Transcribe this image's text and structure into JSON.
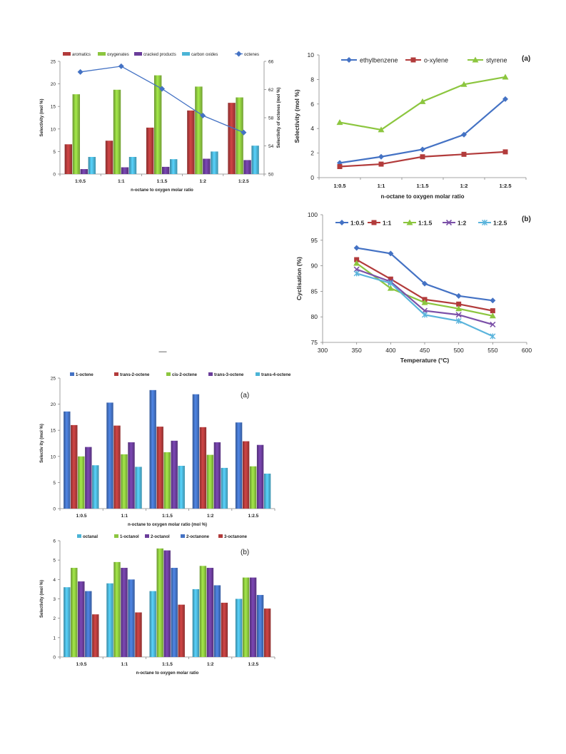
{
  "stray_mark": "—",
  "colors": {
    "red": "#b23b3b",
    "green": "#8cc63f",
    "purple": "#6a3d9a",
    "cyan": "#4bb4d6",
    "blue": "#4472c4",
    "line_blue": "#4472c4",
    "line_red": "#b23b3b",
    "line_green": "#8cc63f",
    "line_purple": "#7b50a8",
    "line_cyan": "#5ab4dc"
  },
  "chart_data": [
    {
      "id": "c1",
      "type": "bar",
      "categories": [
        "1:0.5",
        "1:1",
        "1:1.5",
        "1:2",
        "1:2.5"
      ],
      "series": [
        {
          "name": "aromatics",
          "values": [
            6.6,
            7.4,
            10.3,
            14.1,
            15.8
          ]
        },
        {
          "name": "oxygenates",
          "values": [
            17.7,
            18.7,
            21.9,
            19.4,
            17.0
          ]
        },
        {
          "name": "cracked products",
          "values": [
            1.1,
            1.5,
            1.6,
            3.4,
            3.1
          ]
        },
        {
          "name": "carbon oxides",
          "values": [
            3.8,
            3.8,
            3.3,
            5.0,
            6.3
          ]
        }
      ],
      "line_series": {
        "name": "octenes",
        "values": [
          64.5,
          65.3,
          62.1,
          58.3,
          55.9
        ]
      },
      "xlabel": "n-octane to oxygen molar ratio",
      "ylabel": "Selectivity (mol %)",
      "y2label": "Selectivity of octenes (mol %)",
      "ylim": [
        0,
        25
      ],
      "yticks": [
        "0",
        "5",
        "10",
        "15",
        "20",
        "25"
      ],
      "y2lim": [
        50,
        66
      ],
      "y2ticks": [
        "50",
        "54",
        "58",
        "62",
        "66"
      ],
      "legend": "top",
      "grid": false
    },
    {
      "id": "c2",
      "type": "line",
      "label": "(a)",
      "categories": [
        "1:0.5",
        "1:1",
        "1:1.5",
        "1:2",
        "1:2.5"
      ],
      "series": [
        {
          "name": "ethylbenzene",
          "values": [
            1.2,
            1.7,
            2.3,
            3.5,
            6.4
          ]
        },
        {
          "name": "o-xylene",
          "values": [
            0.9,
            1.1,
            1.7,
            1.9,
            2.1
          ]
        },
        {
          "name": "styrene",
          "values": [
            4.5,
            3.9,
            6.2,
            7.6,
            8.2
          ]
        }
      ],
      "xlabel": "n-octane to oxygen molar ratio",
      "ylabel": "Selectivity (mol %)",
      "ylim": [
        0,
        10
      ],
      "yticks": [
        "0",
        "2",
        "4",
        "6",
        "8",
        "10"
      ],
      "legend": "top",
      "grid": false
    },
    {
      "id": "c3",
      "type": "line",
      "label": "(b)",
      "x": [
        350,
        400,
        450,
        500,
        550
      ],
      "series": [
        {
          "name": "1:0.5",
          "values": [
            93.5,
            92.4,
            86.5,
            84.1,
            83.2
          ]
        },
        {
          "name": "1:1",
          "values": [
            91.2,
            87.4,
            83.4,
            82.5,
            81.2
          ]
        },
        {
          "name": "1:1.5",
          "values": [
            90.5,
            85.6,
            82.8,
            81.6,
            80.2
          ]
        },
        {
          "name": "1:2",
          "values": [
            89.3,
            86.9,
            81.2,
            80.4,
            78.5
          ]
        },
        {
          "name": "1:2.5",
          "values": [
            88.5,
            86.6,
            80.4,
            79.2,
            76.2
          ]
        }
      ],
      "xlabel": "Temperature (°C)",
      "ylabel": "Cyclisation (%)",
      "xlim": [
        300,
        600
      ],
      "xticks": [
        "300",
        "350",
        "400",
        "450",
        "500",
        "550",
        "600"
      ],
      "ylim": [
        75,
        100
      ],
      "yticks": [
        "75",
        "80",
        "85",
        "90",
        "95",
        "100"
      ],
      "legend": "top",
      "grid": false
    },
    {
      "id": "c4",
      "type": "bar",
      "label": "(a)",
      "categories": [
        "1:0.5",
        "1:1",
        "1:1.5",
        "1:2",
        "1:2.5"
      ],
      "series": [
        {
          "name": "1-octene",
          "values": [
            18.6,
            20.3,
            22.7,
            21.9,
            16.5
          ]
        },
        {
          "name": "trans-2-octene",
          "values": [
            16.0,
            15.9,
            15.7,
            15.6,
            12.9
          ]
        },
        {
          "name": "cis-2-octene",
          "values": [
            10.0,
            10.4,
            10.8,
            10.3,
            8.1
          ]
        },
        {
          "name": "trans-3-octene",
          "values": [
            11.8,
            12.7,
            13.0,
            12.7,
            12.2
          ]
        },
        {
          "name": "trans-4-octene",
          "values": [
            8.3,
            8.0,
            8.2,
            7.8,
            6.7
          ]
        }
      ],
      "xlabel": "n-octane to oxygen molar ratio (mol %)",
      "ylabel": "Selectiv ity (mol %)",
      "ylim": [
        0,
        25
      ],
      "yticks": [
        "0",
        "5",
        "10",
        "15",
        "20",
        "25"
      ],
      "legend": "top",
      "grid": false
    },
    {
      "id": "c5",
      "type": "bar",
      "label": "(b)",
      "categories": [
        "1:0.5",
        "1:1",
        "1:1.5",
        "1:2",
        "1:2.5"
      ],
      "series": [
        {
          "name": "octanal",
          "values": [
            3.6,
            3.8,
            3.4,
            3.5,
            3.0
          ]
        },
        {
          "name": "1-octanol",
          "values": [
            4.6,
            4.9,
            5.6,
            4.7,
            4.1
          ]
        },
        {
          "name": "2-octanol",
          "values": [
            3.9,
            4.6,
            5.5,
            4.6,
            4.1
          ]
        },
        {
          "name": "2-octanone",
          "values": [
            3.4,
            4.0,
            4.6,
            3.7,
            3.2
          ]
        },
        {
          "name": "3-octanone",
          "values": [
            2.2,
            2.3,
            2.7,
            2.8,
            2.5
          ]
        }
      ],
      "xlabel": "n-octane to oxygen molar ratio",
      "ylabel": "Selectivity (mol %)",
      "ylim": [
        0,
        6
      ],
      "yticks": [
        "0",
        "1",
        "2",
        "3",
        "4",
        "5",
        "6"
      ],
      "legend": "top",
      "grid": false
    }
  ]
}
